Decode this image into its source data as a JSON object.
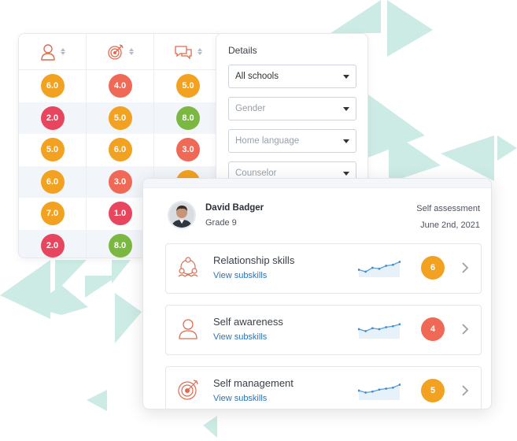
{
  "colors": {
    "orange": "#f3a120",
    "red": "#f06957",
    "crimson": "#e8465e",
    "green": "#7bb842",
    "teal_bg": "#cdebe5",
    "link": "#2b73b8",
    "icon_accent": "#e06a4e"
  },
  "score_table": {
    "columns": [
      {
        "icon": "person-icon"
      },
      {
        "icon": "target-icon"
      },
      {
        "icon": "chat-bubbles-icon"
      }
    ],
    "rows": [
      [
        {
          "v": "6.0",
          "c": "#f3a120"
        },
        {
          "v": "4.0",
          "c": "#f06957"
        },
        {
          "v": "5.0",
          "c": "#f3a120"
        }
      ],
      [
        {
          "v": "2.0",
          "c": "#e8465e"
        },
        {
          "v": "5.0",
          "c": "#f3a120"
        },
        {
          "v": "8.0",
          "c": "#7bb842"
        }
      ],
      [
        {
          "v": "5.0",
          "c": "#f3a120"
        },
        {
          "v": "6.0",
          "c": "#f3a120"
        },
        {
          "v": "3.0",
          "c": "#f06957"
        }
      ],
      [
        {
          "v": "6.0",
          "c": "#f3a120"
        },
        {
          "v": "3.0",
          "c": "#f06957"
        },
        {
          "v": "",
          "c": "#f3a120"
        }
      ],
      [
        {
          "v": "7.0",
          "c": "#f3a120"
        },
        {
          "v": "1.0",
          "c": "#e8465e"
        },
        {
          "v": "",
          "c": ""
        }
      ],
      [
        {
          "v": "2.0",
          "c": "#e8465e"
        },
        {
          "v": "8.0",
          "c": "#7bb842"
        },
        {
          "v": "",
          "c": ""
        }
      ]
    ]
  },
  "details": {
    "title": "Details",
    "filters": [
      {
        "label": "All schools",
        "filled": true
      },
      {
        "label": "Gender",
        "filled": false
      },
      {
        "label": "Home language",
        "filled": false
      },
      {
        "label": "Counselor",
        "filled": false
      }
    ]
  },
  "student": {
    "name": "David Badger",
    "grade": "Grade 9",
    "assessment_type": "Self assessment",
    "date": "June 2nd, 2021",
    "skills": [
      {
        "name": "Relationship skills",
        "link": "View subskills",
        "score": "6",
        "color": "#f3a120",
        "icon": "people-network-icon",
        "trend": [
          3,
          2,
          4,
          3.5,
          5,
          5.5,
          7
        ]
      },
      {
        "name": "Self awareness",
        "link": "View subskills",
        "score": "4",
        "color": "#f06957",
        "icon": "person-icon",
        "trend": [
          4,
          3,
          4.5,
          4,
          5,
          5.5,
          6.5
        ]
      },
      {
        "name": "Self management",
        "link": "View subskills",
        "score": "5",
        "color": "#f3a120",
        "icon": "target-icon",
        "trend": [
          4,
          3,
          3.5,
          4.5,
          5,
          5.5,
          7
        ]
      }
    ]
  }
}
